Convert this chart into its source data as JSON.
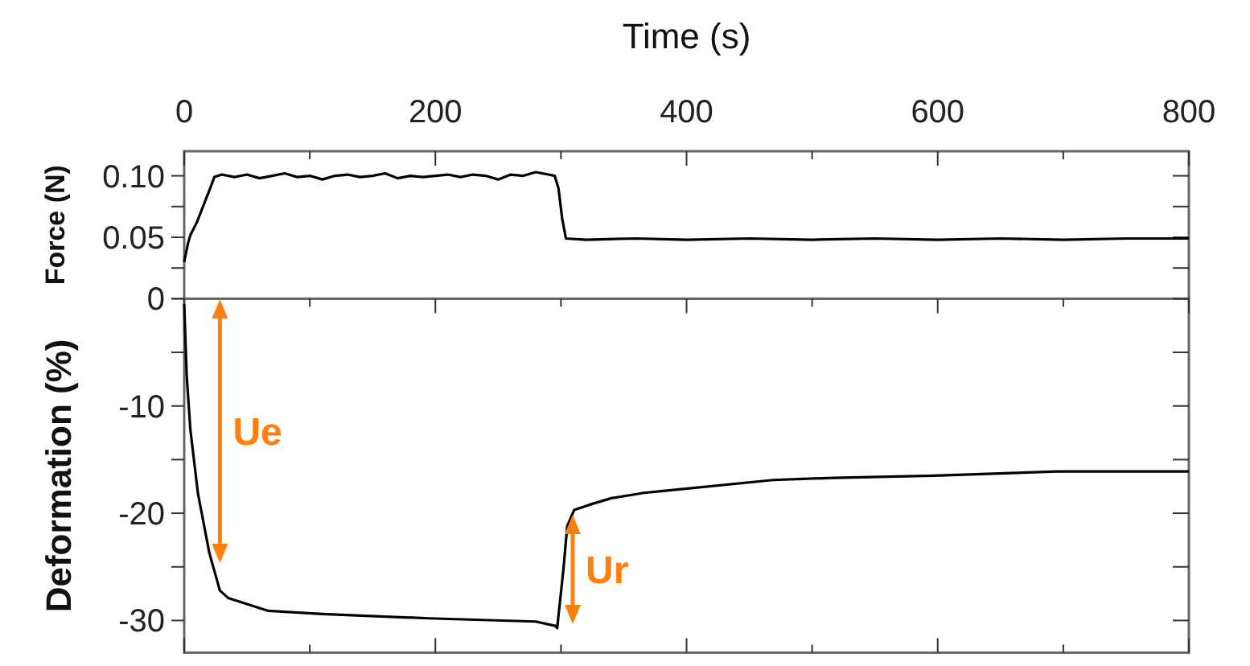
{
  "chart_data": [
    {
      "type": "line",
      "xlabel": "Time (s)",
      "ylabel": "Force (N)",
      "xlim": [
        0,
        800
      ],
      "xticks": [
        0,
        {
          "value": 100,
          "label": null
        },
        200,
        {
          "value": 300,
          "label": null
        },
        400,
        {
          "value": 500,
          "label": null
        },
        600,
        {
          "value": 700,
          "label": null
        },
        800
      ],
      "ylim": [
        0,
        0.12
      ],
      "yticks": [
        0,
        {
          "value": 0.025,
          "label": null
        },
        {
          "value": 0.05,
          "label": "0.05"
        },
        {
          "value": 0.075,
          "label": null
        },
        {
          "value": 0.1,
          "label": "0.10"
        }
      ],
      "series": [
        {
          "color": "#000000",
          "x": [
            0,
            3,
            5,
            10,
            15,
            20,
            24,
            30,
            40,
            50,
            60,
            70,
            80,
            90,
            100,
            110,
            120,
            130,
            140,
            150,
            160,
            170,
            180,
            190,
            200,
            210,
            220,
            230,
            240,
            250,
            260,
            270,
            280,
            290,
            295,
            298,
            301,
            304,
            320,
            360,
            400,
            450,
            500,
            550,
            600,
            650,
            700,
            750,
            800
          ],
          "values": [
            0.03,
            0.045,
            0.052,
            0.062,
            0.075,
            0.088,
            0.099,
            0.101,
            0.099,
            0.101,
            0.098,
            0.1,
            0.102,
            0.099,
            0.1,
            0.097,
            0.1,
            0.101,
            0.099,
            0.1,
            0.102,
            0.098,
            0.1,
            0.099,
            0.1,
            0.101,
            0.099,
            0.101,
            0.1,
            0.097,
            0.101,
            0.1,
            0.103,
            0.101,
            0.1,
            0.09,
            0.065,
            0.049,
            0.048,
            0.049,
            0.048,
            0.049,
            0.048,
            0.049,
            0.048,
            0.049,
            0.048,
            0.049,
            0.049
          ]
        }
      ]
    },
    {
      "type": "line",
      "ylabel": "Deformation (%)",
      "tick_labels": "y",
      "xlim": [
        0,
        800
      ],
      "xticks": [
        {
          "value": 0,
          "label": null
        },
        {
          "value": 100,
          "label": null
        },
        {
          "value": 200,
          "label": null
        },
        {
          "value": 300,
          "label": null
        },
        {
          "value": 400,
          "label": null
        },
        {
          "value": 500,
          "label": null
        },
        {
          "value": 600,
          "label": null
        },
        {
          "value": 700,
          "label": null
        },
        {
          "value": 800,
          "label": null
        }
      ],
      "ylim": [
        -33,
        0
      ],
      "yticks": [
        -30,
        {
          "value": -25,
          "label": null
        },
        -20,
        {
          "value": -15,
          "label": null
        },
        -10,
        {
          "value": -5,
          "label": null
        },
        {
          "value": 0,
          "label": null
        }
      ],
      "annotations": [
        "Ue",
        "Ur"
      ],
      "series": [
        {
          "color": "#000000",
          "x": [
            0,
            2,
            4.9,
            11,
            20,
            28.4,
            35,
            67,
            110,
            195,
            280,
            295.5,
            297,
            302,
            305,
            310.5,
            323,
            340,
            366,
            383,
            469,
            517,
            597,
            695,
            800
          ],
          "values": [
            -0.5,
            -7.2,
            -12.2,
            -18.2,
            -23.7,
            -27.2,
            -27.9,
            -29.1,
            -29.4,
            -29.8,
            -30.1,
            -30.5,
            -30.7,
            -25.2,
            -21.2,
            -19.7,
            -19.2,
            -18.6,
            -18.1,
            -17.9,
            -16.9,
            -16.7,
            -16.5,
            -16.1,
            -16.1
          ]
        }
      ]
    }
  ]
}
